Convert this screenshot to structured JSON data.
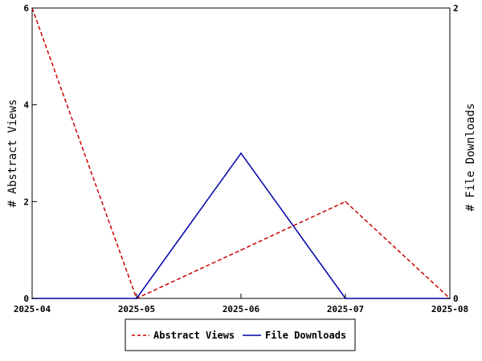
{
  "chart_data": {
    "type": "line",
    "title": "",
    "x": [
      "2025-04",
      "2025-05",
      "2025-06",
      "2025-07",
      "2025-08"
    ],
    "series": [
      {
        "name": "Abstract Views",
        "axis": "left",
        "color": "#cc0000",
        "dash": "dashed",
        "values": [
          6,
          0,
          1,
          2,
          0
        ]
      },
      {
        "name": "File Downloads",
        "axis": "right",
        "color": "#0000aa",
        "dash": "solid",
        "values": [
          0,
          0,
          1,
          0,
          0
        ]
      }
    ],
    "ylabel_left": "# Abstract Views",
    "ylabel_right": "# File Downloads",
    "ylim_left": [
      0,
      6
    ],
    "yticks_left": [
      "0",
      "2",
      "4",
      "6"
    ],
    "ylim_right": [
      0,
      2
    ],
    "yticks_right": [
      "0",
      "2"
    ],
    "legend_position": "bottom-center",
    "grid": false
  }
}
